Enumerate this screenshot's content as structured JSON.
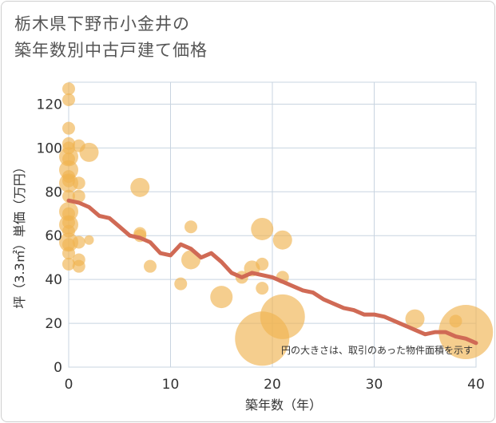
{
  "chart_data": {
    "type": "scatter",
    "title_line1": "栃木県下野市小金井の",
    "title_line2": "築年数別中古戸建て価格",
    "xlabel": "築年数（年）",
    "ylabel": "坪（3.3㎡）単価（万円）",
    "xlim": [
      0,
      40
    ],
    "ylim": [
      0,
      130
    ],
    "xticks": [
      0,
      10,
      20,
      30,
      40
    ],
    "yticks": [
      0,
      20,
      40,
      60,
      80,
      100,
      120
    ],
    "grid": true,
    "annotation": "円の大きさは、取引のあった物件面積を示す",
    "colors": {
      "points": "#f0b452",
      "line": "#d06a55",
      "grid": "#c8d4e0"
    },
    "points": [
      {
        "x": 0,
        "y": 127,
        "s": 1
      },
      {
        "x": 0,
        "y": 122,
        "s": 1
      },
      {
        "x": 0,
        "y": 109,
        "s": 1
      },
      {
        "x": 0,
        "y": 102,
        "s": 1
      },
      {
        "x": 0,
        "y": 100,
        "s": 1
      },
      {
        "x": 0,
        "y": 96,
        "s": 2
      },
      {
        "x": 0,
        "y": 95,
        "s": 1
      },
      {
        "x": 0,
        "y": 90,
        "s": 2
      },
      {
        "x": 0,
        "y": 87,
        "s": 1
      },
      {
        "x": 0,
        "y": 85,
        "s": 1
      },
      {
        "x": 0,
        "y": 84,
        "s": 2
      },
      {
        "x": 0,
        "y": 78,
        "s": 1
      },
      {
        "x": 0,
        "y": 71,
        "s": 2
      },
      {
        "x": 0,
        "y": 70,
        "s": 1
      },
      {
        "x": 0,
        "y": 66,
        "s": 1
      },
      {
        "x": 0,
        "y": 65,
        "s": 2
      },
      {
        "x": 0,
        "y": 62,
        "s": 1
      },
      {
        "x": 0,
        "y": 57,
        "s": 2
      },
      {
        "x": 0,
        "y": 56,
        "s": 1
      },
      {
        "x": 0,
        "y": 52,
        "s": 1
      },
      {
        "x": 0,
        "y": 47,
        "s": 1
      },
      {
        "x": 1,
        "y": 101,
        "s": 1
      },
      {
        "x": 2,
        "y": 98,
        "s": 2
      },
      {
        "x": 1,
        "y": 84,
        "s": 1
      },
      {
        "x": 1,
        "y": 78,
        "s": 1
      },
      {
        "x": 1,
        "y": 57,
        "s": 1
      },
      {
        "x": 1,
        "y": 49,
        "s": 1
      },
      {
        "x": 1,
        "y": 46,
        "s": 1
      },
      {
        "x": 2,
        "y": 58,
        "s": 0.5
      },
      {
        "x": 7,
        "y": 82,
        "s": 2
      },
      {
        "x": 7,
        "y": 61,
        "s": 1
      },
      {
        "x": 7,
        "y": 60,
        "s": 1
      },
      {
        "x": 8,
        "y": 46,
        "s": 1
      },
      {
        "x": 11,
        "y": 38,
        "s": 1
      },
      {
        "x": 12,
        "y": 64,
        "s": 1
      },
      {
        "x": 12,
        "y": 49,
        "s": 2
      },
      {
        "x": 15,
        "y": 32,
        "s": 2.5
      },
      {
        "x": 17,
        "y": 41,
        "s": 1
      },
      {
        "x": 18,
        "y": 45,
        "s": 1.5
      },
      {
        "x": 19,
        "y": 63,
        "s": 2.5
      },
      {
        "x": 19,
        "y": 47,
        "s": 1
      },
      {
        "x": 19,
        "y": 36,
        "s": 1
      },
      {
        "x": 19,
        "y": 13,
        "s": 7.5
      },
      {
        "x": 21,
        "y": 58,
        "s": 2
      },
      {
        "x": 21,
        "y": 41,
        "s": 1
      },
      {
        "x": 21,
        "y": 23,
        "s": 6
      },
      {
        "x": 34,
        "y": 22,
        "s": 2
      },
      {
        "x": 38,
        "y": 21,
        "s": 1
      },
      {
        "x": 39,
        "y": 16,
        "s": 7.5
      }
    ],
    "line": {
      "x": [
        0,
        1,
        2,
        3,
        4,
        5,
        6,
        7,
        8,
        9,
        10,
        11,
        12,
        13,
        14,
        15,
        16,
        17,
        18,
        19,
        20,
        21,
        22,
        23,
        24,
        25,
        26,
        27,
        28,
        29,
        30,
        31,
        32,
        33,
        34,
        35,
        36,
        37,
        38,
        39,
        40
      ],
      "y": [
        76,
        75,
        73,
        69,
        68,
        64,
        60,
        59,
        57,
        52,
        51,
        56,
        54,
        50,
        52,
        48,
        43,
        41,
        43,
        42,
        41,
        39,
        37,
        35,
        34,
        31,
        29,
        27,
        26,
        24,
        24,
        23,
        21,
        19,
        17,
        15,
        16,
        16,
        14,
        13,
        11
      ]
    }
  }
}
